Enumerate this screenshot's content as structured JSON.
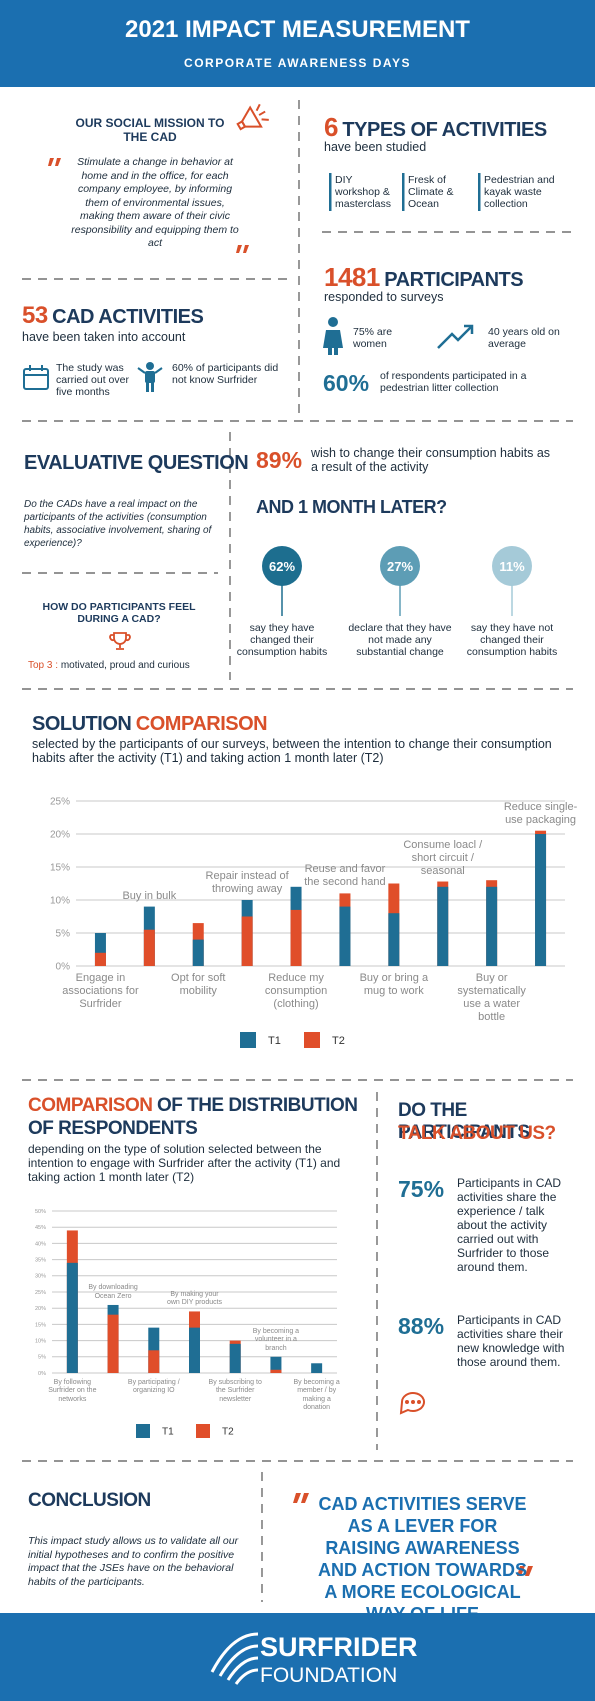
{
  "header": {
    "title": "2021 IMPACT MEASUREMENT",
    "subtitle": "CORPORATE AWARENESS DAYS"
  },
  "mission": {
    "title": "OUR SOCIAL MISSION TO THE CAD",
    "quote": "Stimulate a change in behavior at home and in the office, for each company employee, by informing them of environmental issues, making them aware of their civic responsibility and equipping them to act"
  },
  "types": {
    "number": "6",
    "title": "TYPES OF ACTIVITIES",
    "subtitle": "have been studied",
    "items": [
      "DIY workshop & masterclass",
      "Fresk of Climate & Ocean",
      "Pedestrian and kayak waste collection"
    ]
  },
  "cad": {
    "number": "53",
    "title": "CAD ACTIVITIES",
    "subtitle": "have been taken into account",
    "facts": [
      "The study was carried out over five months",
      "60% of participants did not know Surfrider"
    ]
  },
  "participants": {
    "number": "1481",
    "title": "PARTICIPANTS",
    "subtitle": "responded to surveys",
    "facts": [
      "75% are women",
      "40 years old on average"
    ],
    "stat": "60%",
    "stat_text": "of respondents participated in a pedestrian litter collection"
  },
  "evaluative": {
    "title": "EVALUATIVE QUESTION",
    "question": "Do the CADs have a real impact on the participants of the activities (consumption habits, associative involvement, sharing of experience)?",
    "feel_title": "HOW DO PARTICIPANTS FEEL DURING A CAD?",
    "top_label": "Top 3 :",
    "top_text": "motivated, proud and curious"
  },
  "later": {
    "stat": "89%",
    "stat_text": "wish to change their consumption habits as a result of the activity",
    "title": "AND 1 MONTH LATER?",
    "circles": [
      {
        "value": "62%",
        "text": "say they have changed their consumption habits"
      },
      {
        "value": "27%",
        "text": "declare that they have not made any substantial change"
      },
      {
        "value": "11%",
        "text": "say they have not changed their consumption habits"
      }
    ]
  },
  "chart_data": [
    {
      "type": "bar",
      "title_parts": [
        "SOLUTION",
        "COMPARISON"
      ],
      "subtitle": "selected by the participants of our surveys, between the intention to change their consumption habits after the activity (T1) and taking action 1 month later (T2)",
      "categories": [
        "Engage in associations for Surfrider",
        "Buy in bulk",
        "Opt for soft mobility",
        "Repair instead of throwing away",
        "Reduce my consumption (clothing)",
        "Reuse and favor the second hand",
        "Buy or bring a mug to work",
        "Consume loacl / short circuit / seasonal",
        "Buy or systematically use a water bottle",
        "Reduce single-use packaging"
      ],
      "series": [
        {
          "name": "T1",
          "color": "#1f6e94",
          "values": [
            5,
            9,
            4,
            10,
            12,
            9,
            8,
            12,
            12,
            20
          ]
        },
        {
          "name": "T2",
          "color": "#e04e2a",
          "values": [
            2,
            5.5,
            6.5,
            7.5,
            8.5,
            11,
            12.5,
            12.8,
            13,
            20.5
          ]
        }
      ],
      "ylim": [
        0,
        25
      ],
      "yticks": [
        {
          "value": 0,
          "label": "0%"
        },
        {
          "value": 5,
          "label": "5%"
        },
        {
          "value": 10,
          "label": "10%"
        },
        {
          "value": 15,
          "label": "15%"
        },
        {
          "value": 20,
          "label": "20%"
        },
        {
          "value": 25,
          "label": "25%"
        }
      ],
      "grid": true
    },
    {
      "type": "bar",
      "title_parts": [
        "COMPARISON",
        "OF THE DISTRIBUTION OF RESPONDENTS"
      ],
      "subtitle": "depending on the type of solution selected between the intention to engage with Surfrider after the activity (T1) and taking action 1 month later (T2)",
      "categories": [
        "By following Surfrider on the networks",
        "By downloading Ocean Zero",
        "By participating / organizing IO",
        "By making your own DIY products",
        "By subscribing to the Surfrider newsletter",
        "By becoming a volunteer in a branch",
        "By becoming a member / by making a donation"
      ],
      "series": [
        {
          "name": "T1",
          "color": "#1f6e94",
          "values": [
            34,
            21,
            14,
            14,
            9,
            5,
            3
          ]
        },
        {
          "name": "T2",
          "color": "#e04e2a",
          "values": [
            44,
            18,
            7,
            19,
            10,
            1,
            0
          ]
        }
      ],
      "ylim": [
        0,
        50
      ],
      "yticks": [
        {
          "value": 0,
          "label": "0%"
        },
        {
          "value": 5,
          "label": "5%"
        },
        {
          "value": 10,
          "label": "10%"
        },
        {
          "value": 15,
          "label": "15%"
        },
        {
          "value": 20,
          "label": "20%"
        },
        {
          "value": 25,
          "label": "25%"
        },
        {
          "value": 30,
          "label": "30%"
        },
        {
          "value": 35,
          "label": "35%"
        },
        {
          "value": 40,
          "label": "40%"
        },
        {
          "value": 45,
          "label": "45%"
        },
        {
          "value": 50,
          "label": "50%"
        }
      ],
      "grid": true
    }
  ],
  "talk": {
    "title_parts": [
      "DO THE PARTICIPANTS",
      "TALK ABOUT US?"
    ],
    "stats": [
      {
        "value": "75%",
        "text": "Participants in CAD activities share the experience / talk about the activity carried out with Surfrider to those around them."
      },
      {
        "value": "88%",
        "text": "Participants in CAD activities share their new knowledge with those around them."
      }
    ]
  },
  "conclusion": {
    "title": "CONCLUSION",
    "text": "This impact study allows us to validate all our initial hypotheses and to confirm the positive impact that the JSEs have on the behavioral habits of the participants.",
    "quote": "CAD ACTIVITIES SERVE AS A LEVER FOR RAISING AWARENESS AND ACTION TOWARDS A MORE ECOLOGICAL WAY OF LIFE"
  },
  "footer": {
    "name": "SURFRIDER",
    "sub": "FOUNDATION"
  }
}
